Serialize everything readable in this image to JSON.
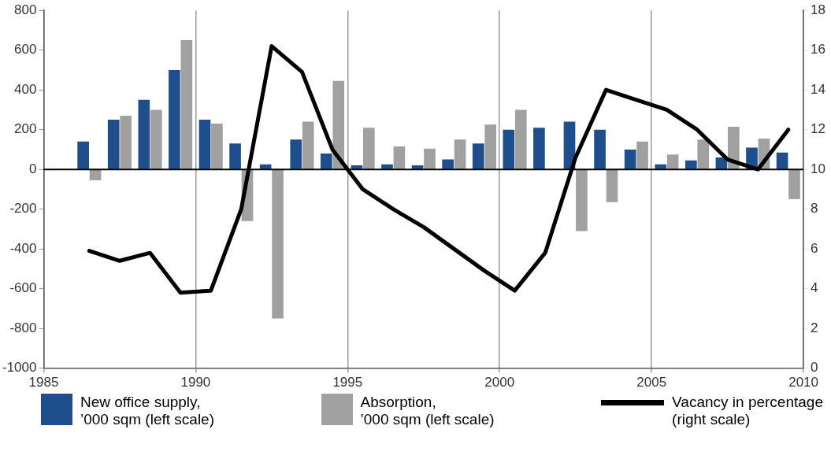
{
  "chart_data": {
    "type": "bar",
    "x": [
      1986.5,
      1987.5,
      1988.5,
      1989.5,
      1990.5,
      1991.5,
      1992.5,
      1993.5,
      1994.5,
      1995.5,
      1996.5,
      1997.5,
      1998.5,
      1999.5,
      2000.5,
      2001.5,
      2002.5,
      2003.5,
      2004.5,
      2005.5,
      2006.5,
      2007.5,
      2008.5,
      2009.5
    ],
    "xlim": [
      1985,
      2010
    ],
    "xticks": [
      1985,
      1990,
      1995,
      2000,
      2005,
      2010
    ],
    "ylim": [
      -1000,
      800
    ],
    "yticks": [
      -1000,
      -800,
      -600,
      -400,
      -200,
      0,
      200,
      400,
      600,
      800
    ],
    "y2lim": [
      0,
      18
    ],
    "y2ticks": [
      0,
      2,
      4,
      6,
      8,
      10,
      12,
      14,
      16,
      18
    ],
    "grid": "x",
    "legend": "bottom",
    "marker": "none",
    "ref_lines": [
      {
        "axis": "y",
        "value": 0,
        "color": "#000000"
      }
    ],
    "series": [
      {
        "name": "New office supply,\n’000 sqm (left scale)",
        "color": "#1f4e8c",
        "values": [
          140,
          250,
          350,
          500,
          250,
          130,
          25,
          150,
          80,
          20,
          25,
          20,
          50,
          130,
          200,
          210,
          240,
          200,
          100,
          25,
          45,
          60,
          110,
          85
        ]
      },
      {
        "name": "Absorption,\n’000 sqm (left scale)",
        "color": "#a0a0a0",
        "values": [
          -55,
          270,
          300,
          650,
          230,
          -260,
          -750,
          240,
          445,
          210,
          115,
          105,
          150,
          225,
          300,
          null,
          -310,
          -165,
          140,
          75,
          150,
          215,
          155,
          -150
        ]
      },
      {
        "name": "Vacancy in percentage\n(right scale)",
        "type": "line",
        "axis": "y2",
        "color": "#000000",
        "values": [
          5.9,
          5.4,
          5.8,
          3.8,
          3.9,
          8.0,
          16.2,
          14.9,
          11.0,
          9.0,
          8.0,
          7.1,
          6.0,
          4.9,
          3.9,
          5.8,
          10.6,
          14.0,
          13.5,
          13.0,
          12.0,
          10.5,
          10.0,
          12.0
        ]
      }
    ]
  }
}
